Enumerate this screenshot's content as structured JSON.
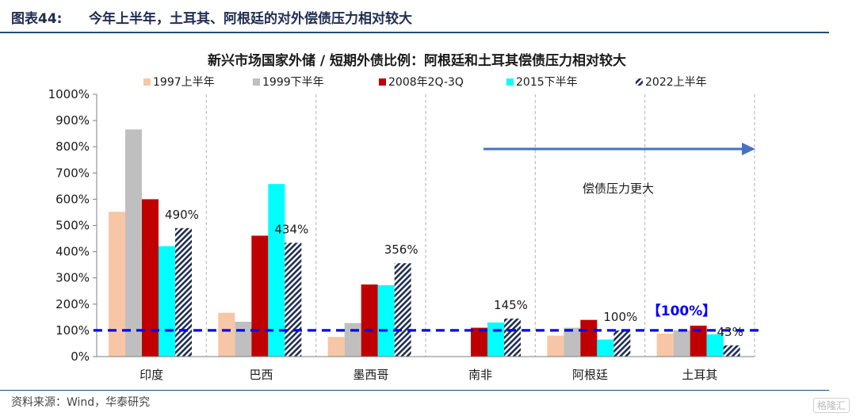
{
  "figure": {
    "number": "图表44:",
    "title": "今年上半年，土耳其、阿根廷的对外偿债压力相对较大",
    "source": "资料来源：Wind，华泰研究",
    "watermark": "格隆汇"
  },
  "chart_data": {
    "type": "bar",
    "title": "新兴市场国家外储 / 短期外债比例：阿根廷和土耳其偿债压力相对较大",
    "categories": [
      "印度",
      "巴西",
      "墨西哥",
      "南非",
      "阿根廷",
      "土耳其"
    ],
    "series": [
      {
        "name": "1997上半年",
        "color": "#f7c6a6",
        "values": [
          552,
          167,
          75,
          null,
          80,
          88
        ]
      },
      {
        "name": "1999下半年",
        "color": "#bfbfbf",
        "values": [
          866,
          133,
          128,
          null,
          110,
          100
        ]
      },
      {
        "name": "2008年2Q-3Q",
        "color": "#c00000",
        "values": [
          600,
          461,
          275,
          110,
          140,
          118
        ]
      },
      {
        "name": "2015下半年",
        "color": "#00ffff",
        "values": [
          421,
          658,
          272,
          130,
          65,
          85
        ]
      },
      {
        "name": "2022上半年",
        "color": "#1f2d50",
        "pattern": "hatched",
        "values": [
          490,
          434,
          356,
          145,
          100,
          43
        ]
      }
    ],
    "ylim": [
      0,
      1000
    ],
    "yticks": [
      "0%",
      "100%",
      "200%",
      "300%",
      "400%",
      "500%",
      "600%",
      "700%",
      "800%",
      "900%",
      "1000%"
    ],
    "data_labels": [
      "490%",
      "434%",
      "356%",
      "145%",
      "100%",
      "43%"
    ],
    "reference_line": {
      "value": 100,
      "color": "#0000ff",
      "style": "dashed"
    },
    "annotations": {
      "arrow_text": "偿债压力更大",
      "highlight_label": "【100%】"
    },
    "legend": "top",
    "grid": false
  }
}
